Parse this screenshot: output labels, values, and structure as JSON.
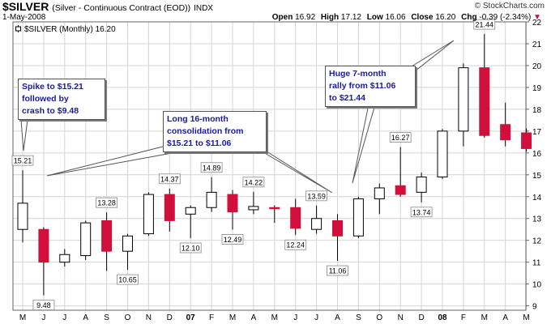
{
  "header": {
    "symbol": "$SILVER",
    "full_name": "(Silver - Continuous Contract (EOD))",
    "exchange": "INDX",
    "brand": "© StockCharts.com",
    "date": "1-May-2008",
    "open_label": "Open",
    "open": "16.92",
    "high_label": "High",
    "high": "17.12",
    "low_label": "Low",
    "low": "16.06",
    "close_label": "Close",
    "close": "16.20",
    "chg_label": "Chg",
    "chg": "-0.39 (-2.34%)",
    "chg_arrow": "▼",
    "legend": "$SILVER (Monthly) 16.20"
  },
  "annotations": [
    {
      "lines": [
        "Spike to $15.21",
        "followed by",
        "crash to $9.48"
      ]
    },
    {
      "lines": [
        "Long 16-month",
        "consolidation from",
        "$15.21 to $11.06"
      ]
    },
    {
      "lines": [
        "Huge 7-month",
        "rally from $11.06",
        "to $21.44"
      ]
    }
  ],
  "colors": {
    "up_fill": "#ffffff",
    "down_fill": "#d0103a",
    "wick": "#000000",
    "grid": "#d4d4d4",
    "text": "#000000",
    "annotation_text": "#1a1aa0",
    "chg_arrow": "#c8102e"
  },
  "chart_data": {
    "type": "candlestick",
    "title": "$SILVER (Monthly) 16.20",
    "ylim": [
      8.8,
      22
    ],
    "y_ticks": [
      9,
      10,
      11,
      12,
      13,
      14,
      15,
      16,
      17,
      18,
      19,
      20,
      21,
      22
    ],
    "x_tick_labels": [
      "M",
      "J",
      "J",
      "A",
      "S",
      "O",
      "N",
      "D",
      "07",
      "F",
      "M",
      "A",
      "M",
      "J",
      "J",
      "A",
      "S",
      "O",
      "N",
      "D",
      "08",
      "F",
      "M",
      "A",
      "M"
    ],
    "bold_ticks": [
      "07",
      "08"
    ],
    "candles": [
      {
        "o": 12.5,
        "h": 15.21,
        "l": 11.9,
        "c": 13.7
      },
      {
        "o": 12.5,
        "h": 12.6,
        "l": 9.48,
        "c": 11.0
      },
      {
        "o": 11.0,
        "h": 11.6,
        "l": 10.8,
        "c": 11.35
      },
      {
        "o": 11.3,
        "h": 12.9,
        "l": 11.1,
        "c": 12.8
      },
      {
        "o": 12.9,
        "h": 13.28,
        "l": 10.6,
        "c": 11.5
      },
      {
        "o": 11.5,
        "h": 12.3,
        "l": 10.65,
        "c": 12.2
      },
      {
        "o": 12.3,
        "h": 14.2,
        "l": 12.2,
        "c": 14.1
      },
      {
        "o": 14.1,
        "h": 14.37,
        "l": 12.4,
        "c": 12.9
      },
      {
        "o": 13.2,
        "h": 13.6,
        "l": 12.1,
        "c": 13.5
      },
      {
        "o": 13.5,
        "h": 14.89,
        "l": 13.3,
        "c": 14.2
      },
      {
        "o": 14.1,
        "h": 14.3,
        "l": 12.49,
        "c": 13.3
      },
      {
        "o": 13.4,
        "h": 14.22,
        "l": 13.2,
        "c": 13.55
      },
      {
        "o": 13.5,
        "h": 13.6,
        "l": 12.8,
        "c": 13.45
      },
      {
        "o": 13.5,
        "h": 13.9,
        "l": 12.24,
        "c": 12.55
      },
      {
        "o": 12.5,
        "h": 13.59,
        "l": 12.3,
        "c": 13.0
      },
      {
        "o": 12.9,
        "h": 13.2,
        "l": 11.06,
        "c": 12.2
      },
      {
        "o": 12.2,
        "h": 14.0,
        "l": 12.1,
        "c": 13.9
      },
      {
        "o": 13.9,
        "h": 14.6,
        "l": 13.2,
        "c": 14.4
      },
      {
        "o": 14.5,
        "h": 16.27,
        "l": 14.0,
        "c": 14.1
      },
      {
        "o": 14.2,
        "h": 15.1,
        "l": 13.74,
        "c": 14.9
      },
      {
        "o": 14.9,
        "h": 17.1,
        "l": 14.8,
        "c": 17.0
      },
      {
        "o": 17.0,
        "h": 20.1,
        "l": 16.3,
        "c": 19.9
      },
      {
        "o": 19.9,
        "h": 21.44,
        "l": 16.7,
        "c": 16.8
      },
      {
        "o": 17.3,
        "h": 18.3,
        "l": 16.3,
        "c": 16.6
      },
      {
        "o": 16.92,
        "h": 17.12,
        "l": 16.06,
        "c": 16.2
      }
    ],
    "price_labels": [
      {
        "i": 0,
        "value": "15.21",
        "pos": "above"
      },
      {
        "i": 1,
        "value": "9.48",
        "pos": "below"
      },
      {
        "i": 4,
        "value": "13.28",
        "pos": "above"
      },
      {
        "i": 5,
        "value": "10.65",
        "pos": "below"
      },
      {
        "i": 7,
        "value": "14.37",
        "pos": "above"
      },
      {
        "i": 8,
        "value": "12.10",
        "pos": "below"
      },
      {
        "i": 9,
        "value": "14.89",
        "pos": "above"
      },
      {
        "i": 10,
        "value": "12.49",
        "pos": "below"
      },
      {
        "i": 11,
        "value": "14.22",
        "pos": "above"
      },
      {
        "i": 13,
        "value": "12.24",
        "pos": "below"
      },
      {
        "i": 14,
        "value": "13.59",
        "pos": "above"
      },
      {
        "i": 15,
        "value": "11.06",
        "pos": "below"
      },
      {
        "i": 18,
        "value": "16.27",
        "pos": "above"
      },
      {
        "i": 19,
        "value": "13.74",
        "pos": "below"
      },
      {
        "i": 22,
        "value": "21.44",
        "pos": "above"
      }
    ]
  }
}
